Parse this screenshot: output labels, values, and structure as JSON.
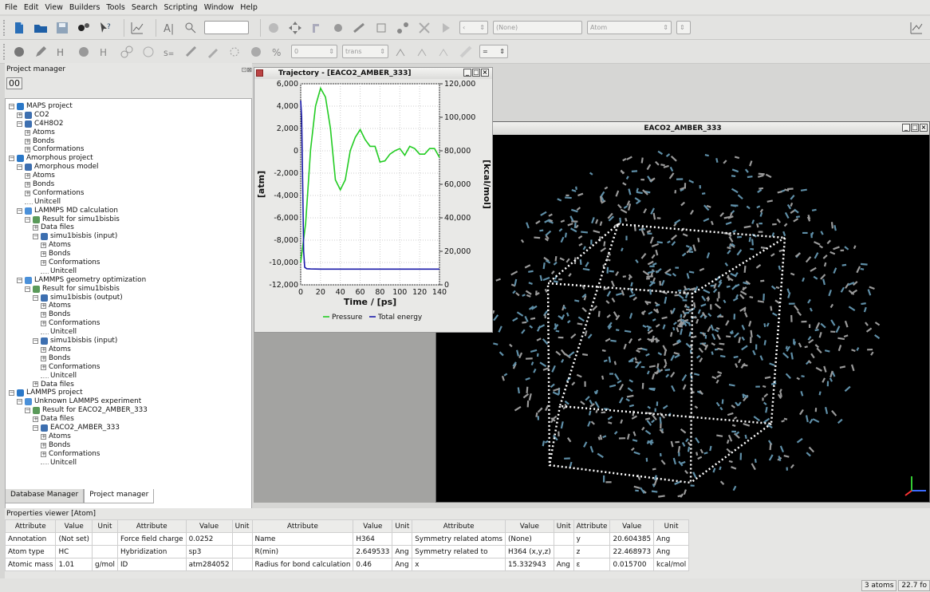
{
  "menu": [
    "File",
    "Edit",
    "View",
    "Builders",
    "Tools",
    "Search",
    "Scripting",
    "Window",
    "Help"
  ],
  "toolbar": {
    "dd_none": "(None)",
    "dd_atom": "Atom",
    "dd_zero": "0",
    "dd_trans": "trans"
  },
  "project_manager": {
    "title": "Project manager",
    "tree": [
      {
        "d": 0,
        "t": "MAPS project",
        "c": "#2a78c8",
        "w": "-"
      },
      {
        "d": 1,
        "t": "CO2",
        "c": "#3d6fb0",
        "w": "+"
      },
      {
        "d": 1,
        "t": "C4H8O2",
        "c": "#3d6fb0",
        "w": "-"
      },
      {
        "d": 2,
        "t": "Atoms",
        "c": "",
        "w": "+"
      },
      {
        "d": 2,
        "t": "Bonds",
        "c": "",
        "w": "+"
      },
      {
        "d": 2,
        "t": "Conformations",
        "c": "",
        "w": "+"
      },
      {
        "d": 0,
        "t": "Amorphous project",
        "c": "#2a78c8",
        "w": "-"
      },
      {
        "d": 1,
        "t": "Amorphous model",
        "c": "#3d6fb0",
        "w": "-"
      },
      {
        "d": 2,
        "t": "Atoms",
        "c": "",
        "w": "+"
      },
      {
        "d": 2,
        "t": "Bonds",
        "c": "",
        "w": "+"
      },
      {
        "d": 2,
        "t": "Conformations",
        "c": "",
        "w": "+"
      },
      {
        "d": 2,
        "t": "Unitcell",
        "c": "",
        "w": ""
      },
      {
        "d": 1,
        "t": "LAMMPS MD calculation",
        "c": "#4a90d9",
        "w": "-"
      },
      {
        "d": 2,
        "t": "Result for simu1bisbis",
        "c": "#5a9a5a",
        "w": "-"
      },
      {
        "d": 3,
        "t": "Data files",
        "c": "",
        "w": "+"
      },
      {
        "d": 3,
        "t": "simu1bisbis (input)",
        "c": "#3d6fb0",
        "w": "-"
      },
      {
        "d": 4,
        "t": "Atoms",
        "c": "",
        "w": "+"
      },
      {
        "d": 4,
        "t": "Bonds",
        "c": "",
        "w": "+"
      },
      {
        "d": 4,
        "t": "Conformations",
        "c": "",
        "w": "+"
      },
      {
        "d": 4,
        "t": "Unitcell",
        "c": "",
        "w": ""
      },
      {
        "d": 1,
        "t": "LAMMPS geometry optimization",
        "c": "#4a90d9",
        "w": "-"
      },
      {
        "d": 2,
        "t": "Result for simu1bisbis",
        "c": "#5a9a5a",
        "w": "-"
      },
      {
        "d": 3,
        "t": "simu1bisbis (output)",
        "c": "#3d6fb0",
        "w": "-"
      },
      {
        "d": 4,
        "t": "Atoms",
        "c": "",
        "w": "+"
      },
      {
        "d": 4,
        "t": "Bonds",
        "c": "",
        "w": "+"
      },
      {
        "d": 4,
        "t": "Conformations",
        "c": "",
        "w": "+"
      },
      {
        "d": 4,
        "t": "Unitcell",
        "c": "",
        "w": ""
      },
      {
        "d": 3,
        "t": "simu1bisbis (input)",
        "c": "#3d6fb0",
        "w": "-"
      },
      {
        "d": 4,
        "t": "Atoms",
        "c": "",
        "w": "+"
      },
      {
        "d": 4,
        "t": "Bonds",
        "c": "",
        "w": "+"
      },
      {
        "d": 4,
        "t": "Conformations",
        "c": "",
        "w": "+"
      },
      {
        "d": 4,
        "t": "Unitcell",
        "c": "",
        "w": ""
      },
      {
        "d": 3,
        "t": "Data files",
        "c": "",
        "w": "+"
      },
      {
        "d": 0,
        "t": "LAMMPS project",
        "c": "#2a78c8",
        "w": "-"
      },
      {
        "d": 1,
        "t": "Unknown LAMMPS experiment",
        "c": "#4a90d9",
        "w": "-"
      },
      {
        "d": 2,
        "t": "Result for EACO2_AMBER_333",
        "c": "#5a9a5a",
        "w": "-"
      },
      {
        "d": 3,
        "t": "Data files",
        "c": "",
        "w": "+"
      },
      {
        "d": 3,
        "t": "EACO2_AMBER_333",
        "c": "#3d6fb0",
        "w": "-"
      },
      {
        "d": 4,
        "t": "Atoms",
        "c": "",
        "w": "+"
      },
      {
        "d": 4,
        "t": "Bonds",
        "c": "",
        "w": "+"
      },
      {
        "d": 4,
        "t": "Conformations",
        "c": "",
        "w": "+"
      },
      {
        "d": 4,
        "t": "Unitcell",
        "c": "",
        "w": ""
      }
    ],
    "tabs": [
      "Database Manager",
      "Project manager"
    ]
  },
  "trajectory": {
    "title": "Trajectory - [EACO2_AMBER_333]"
  },
  "chart_data": {
    "type": "line",
    "xlabel": "Time / [ps]",
    "ylabel_left": "[atm]",
    "ylabel_right": "[kcal/mol]",
    "xlim": [
      0,
      140
    ],
    "ylim_left": [
      -12000,
      6000
    ],
    "ylim_right": [
      0,
      120000
    ],
    "x_ticks": [
      "0",
      "20",
      "40",
      "60",
      "80",
      "100",
      "120",
      "140"
    ],
    "y_ticks_left": [
      "6,000",
      "4,000",
      "2,000",
      "0",
      "-2,000",
      "-4,000",
      "-6,000",
      "-8,000",
      "-10,000",
      "-12,000"
    ],
    "y_ticks_right": [
      "120,000",
      "100,000",
      "80,000",
      "60,000",
      "40,000",
      "20,000",
      "0"
    ],
    "series": [
      {
        "name": "Pressure",
        "color": "#22cc22",
        "axis": "left",
        "x": [
          0,
          5,
          10,
          15,
          20,
          25,
          30,
          35,
          40,
          45,
          50,
          55,
          60,
          65,
          70,
          75,
          80,
          85,
          90,
          95,
          100,
          105,
          110,
          115,
          120,
          125,
          130,
          135,
          140
        ],
        "y": [
          -10000,
          -6500,
          100,
          4000,
          5600,
          4800,
          2000,
          -2600,
          -3500,
          -2600,
          0,
          1200,
          1900,
          1000,
          400,
          400,
          -1000,
          -900,
          -300,
          0,
          200,
          -400,
          400,
          200,
          -300,
          -300,
          200,
          200,
          -600
        ]
      },
      {
        "name": "Total energy",
        "color": "#1a1aaa",
        "axis": "right",
        "x": [
          0,
          1,
          2,
          3,
          4,
          6,
          10,
          20,
          40,
          60,
          80,
          100,
          120,
          140
        ],
        "y": [
          110000,
          100000,
          60000,
          20000,
          10500,
          9600,
          9500,
          9400,
          9400,
          9400,
          9400,
          9400,
          9400,
          9400
        ]
      }
    ],
    "grid": true,
    "legend": "bottom"
  },
  "molecule_viewer": {
    "title": "EACO2_AMBER_333"
  },
  "properties": {
    "title": "Properties viewer [Atom]",
    "headers": [
      "Attribute",
      "Value",
      "Unit",
      "Attribute",
      "Value",
      "Unit",
      "Attribute",
      "Value",
      "Unit",
      "Attribute",
      "Value",
      "Unit",
      "Attribute",
      "Value",
      "Unit"
    ],
    "rows": [
      [
        "Annotation",
        "(Not set)",
        "",
        "Force field charge",
        "0.0252",
        "",
        "Name",
        "H364",
        "",
        "Symmetry related atoms",
        "(None)",
        "",
        "y",
        "20.604385",
        "Ang"
      ],
      [
        "Atom type",
        "HC",
        "",
        "Hybridization",
        "sp3",
        "",
        "R(min)",
        "2.649533",
        "Ang",
        "Symmetry related to",
        "H364 (x,y,z)",
        "",
        "z",
        "22.468973",
        "Ang"
      ],
      [
        "Atomic mass",
        "1.01",
        "g/mol",
        "ID",
        "atm284052",
        "",
        "Radius for bond calculation",
        "0.46",
        "Ang",
        "x",
        "15.332943",
        "Ang",
        "ε",
        "0.015700",
        "kcal/mol"
      ]
    ]
  },
  "status": {
    "atoms": "3 atoms",
    "zoom": "22.7 fo"
  }
}
